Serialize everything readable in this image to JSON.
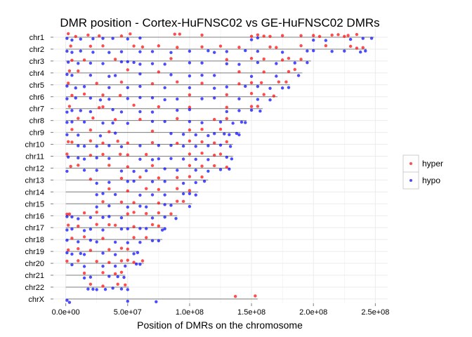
{
  "chart_data": {
    "type": "scatter",
    "title": "DMR position - Cortex-HuFNSC02 vs GE-HuFNSC02 DMRs",
    "xlabel": "Position of DMRs on the chromosome",
    "ylabel": "",
    "xlim": [
      -10000000.0,
      260000000.0
    ],
    "x_ticks": [
      0,
      50000000.0,
      100000000.0,
      150000000.0,
      200000000.0,
      250000000.0
    ],
    "x_tick_labels": [
      "0.0e+00",
      "5.0e+07",
      "1.0e+08",
      "1.5e+08",
      "2.0e+08",
      "2.5e+08"
    ],
    "categories": [
      "chr1",
      "chr2",
      "chr3",
      "chr4",
      "chr5",
      "chr6",
      "chr7",
      "chr8",
      "chr9",
      "chr10",
      "chr11",
      "chr12",
      "chr13",
      "chr14",
      "chr15",
      "chr16",
      "chr17",
      "chr18",
      "chr19",
      "chr20",
      "chr21",
      "chr22",
      "chrX"
    ],
    "chromosome_lengths": [
      249000000,
      243000000,
      198000000,
      191000000,
      181000000,
      171000000,
      159000000,
      146000000,
      141000000,
      135000000,
      135000000,
      133000000,
      115000000,
      107000000,
      102000000,
      90000000,
      81000000,
      78000000,
      59000000,
      63000000,
      48000000,
      51000000,
      155000000
    ],
    "legend": {
      "position": "right",
      "entries": [
        "hyper",
        "hypo"
      ]
    },
    "grid": true,
    "colors": {
      "hyper": "#ff0000",
      "hypo": "#0000ff",
      "grid": "#ebebeb",
      "chrom_line": "#7f7f7f"
    },
    "series": [
      {
        "name": "hyper",
        "points": [
          [
            "chr1",
            [
              2000000.0,
              8000000.0,
              18000000.0,
              27000000.0,
              45000000.0,
              52000000.0,
              88000000.0,
              92000000.0,
              110000000.0,
              150000000.0,
              155000000.0,
              160000000.0,
              165000000.0,
              175000000.0,
              190000000.0,
              200000000.0,
              205000000.0,
              215000000.0,
              220000000.0,
              225000000.0,
              228000000.0,
              235000000.0
            ]
          ],
          [
            "chr2",
            [
              4000000.0,
              20000000.0,
              30000000.0,
              55000000.0,
              62000000.0,
              75000000.0,
              90000000.0,
              110000000.0,
              125000000.0,
              140000000.0,
              165000000.0,
              170000000.0,
              190000000.0,
              210000000.0,
              230000000.0,
              235000000.0,
              240000000.0
            ]
          ],
          [
            "chr3",
            [
              5000000.0,
              15000000.0,
              40000000.0,
              85000000.0,
              130000000.0,
              150000000.0,
              160000000.0,
              175000000.0,
              180000000.0,
              190000000.0
            ]
          ],
          [
            "chr4",
            [
              3000000.0,
              10000000.0,
              50000000.0,
              75000000.0,
              140000000.0,
              160000000.0,
              180000000.0,
              185000000.0
            ]
          ],
          [
            "chr5",
            [
              2000000.0,
              25000000.0,
              45000000.0,
              70000000.0,
              90000000.0,
              110000000.0,
              140000000.0,
              150000000.0,
              158000000.0,
              172000000.0,
              178000000.0
            ]
          ],
          [
            "chr6",
            [
              5000000.0,
              15000000.0,
              30000000.0,
              44000000.0,
              100000000.0,
              130000000.0,
              150000000.0,
              160000000.0,
              168000000.0
            ]
          ],
          [
            "chr7",
            [
              3000000.0,
              27000000.0,
              30000000.0,
              55000000.0,
              75000000.0,
              100000000.0,
              130000000.0,
              150000000.0,
              155000000.0
            ]
          ],
          [
            "chr8",
            [
              10000000.0,
              22000000.0,
              40000000.0,
              60000000.0,
              90000000.0,
              120000000.0,
              130000000.0
            ]
          ],
          [
            "chr9",
            [
              5000000.0,
              20000000.0,
              35000000.0,
              70000000.0,
              100000000.0,
              110000000.0,
              125000000.0
            ]
          ],
          [
            "chr10",
            [
              2000000.0,
              5000000.0,
              20000000.0,
              30000000.0,
              42000000.0,
              50000000.0,
              70000000.0,
              90000000.0,
              100000000.0,
              110000000.0,
              120000000.0,
              130000000.0
            ]
          ],
          [
            "chr11",
            [
              1000000.0,
              20000000.0,
              30000000.0,
              44000000.0,
              50000000.0,
              65000000.0,
              100000000.0,
              110000000.0,
              120000000.0,
              125000000.0
            ]
          ],
          [
            "chr12",
            [
              4000000.0,
              10000000.0,
              35000000.0,
              50000000.0,
              70000000.0,
              100000000.0,
              110000000.0,
              120000000.0,
              130000000.0
            ]
          ],
          [
            "chr13",
            [
              20000000.0,
              45000000.0,
              60000000.0,
              75000000.0,
              90000000.0,
              100000000.0,
              110000000.0
            ]
          ],
          [
            "chr14",
            [
              35000000.0,
              50000000.0,
              65000000.0,
              75000000.0,
              90000000.0,
              100000000.0
            ]
          ],
          [
            "chr15",
            [
              30000000.0,
              45000000.0,
              55000000.0,
              75000000.0,
              90000000.0,
              95000000.0
            ]
          ],
          [
            "chr16",
            [
              1000000.0,
              3000000.0,
              15000000.0,
              25000000.0,
              50000000.0,
              55000000.0,
              65000000.0,
              75000000.0,
              85000000.0
            ]
          ],
          [
            "chr17",
            [
              2000000.0,
              10000000.0,
              25000000.0,
              35000000.0,
              40000000.0,
              55000000.0,
              70000000.0,
              75000000.0
            ]
          ],
          [
            "chr18",
            [
              5000000.0,
              15000000.0,
              30000000.0,
              55000000.0,
              65000000.0
            ]
          ],
          [
            "chr19",
            [
              2000000.0,
              10000000.0,
              20000000.0,
              35000000.0,
              45000000.0,
              50000000.0
            ]
          ],
          [
            "chr20",
            [
              1000000.0,
              10000000.0,
              25000000.0,
              35000000.0,
              45000000.0,
              50000000.0,
              55000000.0,
              62000000.0
            ]
          ],
          [
            "chr21",
            [
              15000000.0,
              30000000.0,
              40000000.0,
              45000000.0
            ]
          ],
          [
            "chr22",
            [
              20000000.0,
              30000000.0,
              42000000.0,
              48000000.0
            ]
          ],
          [
            "chrX",
            [
              137000000.0,
              153000000.0
            ]
          ]
        ]
      },
      {
        "name": "hypo",
        "points": [
          [
            "chr1",
            [
              1000000.0,
              5000000.0,
              12000000.0,
              22000000.0,
              30000000.0,
              38000000.0,
              50000000.0,
              60000000.0,
              150000000.0,
              155000000.0,
              200000000.0,
              210000000.0,
              230000000.0,
              240000000.0,
              247000000.0
            ]
          ],
          [
            "chr2",
            [
              1000000.0,
              5000000.0,
              12000000.0,
              22000000.0,
              35000000.0,
              45000000.0,
              60000000.0,
              70000000.0,
              85000000.0,
              100000000.0,
              115000000.0,
              120000000.0,
              130000000.0,
              145000000.0,
              155000000.0,
              175000000.0,
              195000000.0,
              200000000.0,
              215000000.0,
              225000000.0,
              238000000.0,
              242000000.0
            ]
          ],
          [
            "chr3",
            [
              2000000.0,
              10000000.0,
              20000000.0,
              30000000.0,
              45000000.0,
              50000000.0,
              55000000.0,
              60000000.0,
              70000000.0,
              80000000.0,
              100000000.0,
              110000000.0,
              130000000.0,
              140000000.0,
              155000000.0,
              170000000.0,
              185000000.0,
              195000000.0
            ]
          ],
          [
            "chr4",
            [
              1000000.0,
              5000000.0,
              20000000.0,
              35000000.0,
              40000000.0,
              60000000.0,
              85000000.0,
              100000000.0,
              110000000.0,
              120000000.0,
              150000000.0,
              170000000.0,
              188000000.0
            ]
          ],
          [
            "chr5",
            [
              1000000.0,
              8000000.0,
              15000000.0,
              35000000.0,
              50000000.0,
              60000000.0,
              80000000.0,
              100000000.0,
              120000000.0,
              130000000.0,
              145000000.0,
              155000000.0,
              165000000.0,
              175000000.0,
              180000000.0
            ]
          ],
          [
            "chr6",
            [
              1000000.0,
              8000000.0,
              20000000.0,
              28000000.0,
              35000000.0,
              50000000.0,
              60000000.0,
              70000000.0,
              80000000.0,
              90000000.0,
              110000000.0,
              120000000.0,
              140000000.0,
              155000000.0,
              165000000.0
            ]
          ],
          [
            "chr7",
            [
              1000000.0,
              5000000.0,
              12000000.0,
              20000000.0,
              38000000.0,
              45000000.0,
              60000000.0,
              70000000.0,
              90000000.0,
              100000000.0,
              130000000.0,
              140000000.0,
              150000000.0,
              157000000.0
            ]
          ],
          [
            "chr8",
            [
              1000000.0,
              5000000.0,
              15000000.0,
              30000000.0,
              38000000.0,
              50000000.0,
              70000000.0,
              80000000.0,
              100000000.0,
              110000000.0,
              125000000.0,
              135000000.0,
              142000000.0,
              145000000.0
            ]
          ],
          [
            "chr9",
            [
              1000000.0,
              10000000.0,
              28000000.0,
              40000000.0,
              85000000.0,
              95000000.0,
              105000000.0,
              115000000.0,
              120000000.0,
              128000000.0,
              132000000.0,
              138000000.0,
              140000000.0
            ]
          ],
          [
            "chr10",
            [
              10000000.0,
              15000000.0,
              25000000.0,
              35000000.0,
              45000000.0,
              60000000.0,
              75000000.0,
              85000000.0,
              95000000.0,
              105000000.0,
              115000000.0,
              125000000.0,
              133000000.0
            ]
          ],
          [
            "chr11",
            [
              2000000.0,
              10000000.0,
              15000000.0,
              25000000.0,
              35000000.0,
              60000000.0,
              70000000.0,
              75000000.0,
              85000000.0,
              95000000.0,
              105000000.0,
              115000000.0,
              130000000.0,
              134000000.0
            ]
          ],
          [
            "chr12",
            [
              1000000.0,
              15000000.0,
              25000000.0,
              45000000.0,
              55000000.0,
              65000000.0,
              80000000.0,
              90000000.0,
              105000000.0,
              115000000.0,
              125000000.0,
              132000000.0
            ]
          ],
          [
            "chr13",
            [
              25000000.0,
              35000000.0,
              50000000.0,
              55000000.0,
              70000000.0,
              80000000.0,
              95000000.0,
              105000000.0,
              112000000.0
            ]
          ],
          [
            "chr14",
            [
              25000000.0,
              30000000.0,
              40000000.0,
              60000000.0,
              70000000.0,
              80000000.0,
              95000000.0,
              100000000.0,
              105000000.0
            ]
          ],
          [
            "chr15",
            [
              25000000.0,
              35000000.0,
              50000000.0,
              60000000.0,
              65000000.0,
              80000000.0,
              85000000.0,
              100000000.0
            ]
          ],
          [
            "chr16",
            [
              1000000.0,
              5000000.0,
              10000000.0,
              20000000.0,
              30000000.0,
              35000000.0,
              45000000.0,
              70000000.0,
              80000000.0,
              89000000.0
            ]
          ],
          [
            "chr17",
            [
              1000000.0,
              5000000.0,
              15000000.0,
              20000000.0,
              30000000.0,
              45000000.0,
              50000000.0,
              60000000.0,
              65000000.0,
              78000000.0,
              80000000.0
            ]
          ],
          [
            "chr18",
            [
              1000000.0,
              10000000.0,
              20000000.0,
              25000000.0,
              40000000.0,
              50000000.0,
              60000000.0,
              70000000.0,
              75000000.0
            ]
          ],
          [
            "chr19",
            [
              1000000.0,
              5000000.0,
              12000000.0,
              15000000.0,
              30000000.0,
              40000000.0,
              55000000.0,
              58000000.0
            ]
          ],
          [
            "chr20",
            [
              5000000.0,
              15000000.0,
              30000000.0,
              40000000.0,
              48000000.0,
              57000000.0,
              60000000.0
            ]
          ],
          [
            "chr21",
            [
              15000000.0,
              20000000.0,
              35000000.0,
              42000000.0,
              47000000.0
            ]
          ],
          [
            "chr22",
            [
              18000000.0,
              22000000.0,
              25000000.0,
              32000000.0,
              38000000.0,
              45000000.0,
              50000000.0
            ]
          ],
          [
            "chrX",
            [
              1000000.0,
              3000000.0,
              50000000.0,
              73000000.0
            ]
          ]
        ]
      }
    ]
  }
}
